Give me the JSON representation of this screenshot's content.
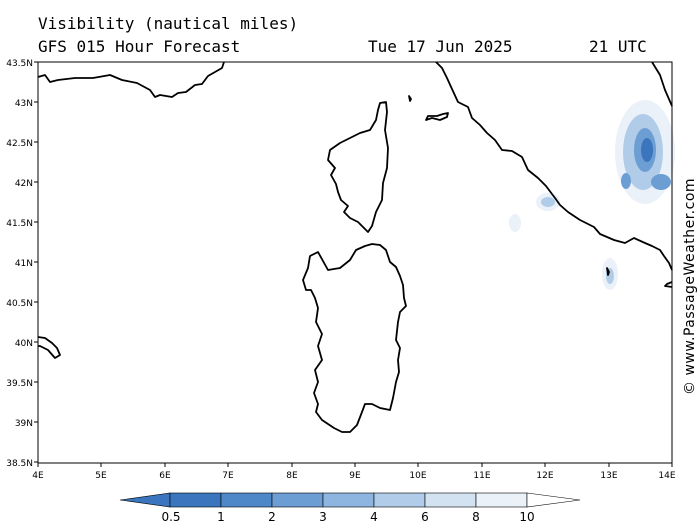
{
  "header": {
    "title_line1": "Visibility (nautical miles)",
    "title_line2": "GFS 015 Hour Forecast",
    "date": "Tue 17 Jun 2025",
    "time": "21 UTC"
  },
  "credit": "© www.PassageWeather.com",
  "map": {
    "lat_labels": [
      "43.5N",
      "43N",
      "42.5N",
      "42N",
      "41.5N",
      "41N",
      "40.5N",
      "40N",
      "39.5N",
      "39N",
      "38.5N"
    ],
    "lon_labels": [
      "4E",
      "5E",
      "6E",
      "7E",
      "8E",
      "9E",
      "10E",
      "11E",
      "12E",
      "13E",
      "14E"
    ],
    "coastline_color": "#000000",
    "low_visibility_color": "#3f7ec2"
  },
  "colorbar": {
    "labels": [
      "0.5",
      "1",
      "2",
      "3",
      "4",
      "6",
      "8",
      "10"
    ],
    "colors": [
      "#3a75bd",
      "#4f88c9",
      "#6c9ed4",
      "#8db5df",
      "#b0cce8",
      "#d2e2f1",
      "#eaf1f9",
      "#ffffff"
    ]
  }
}
